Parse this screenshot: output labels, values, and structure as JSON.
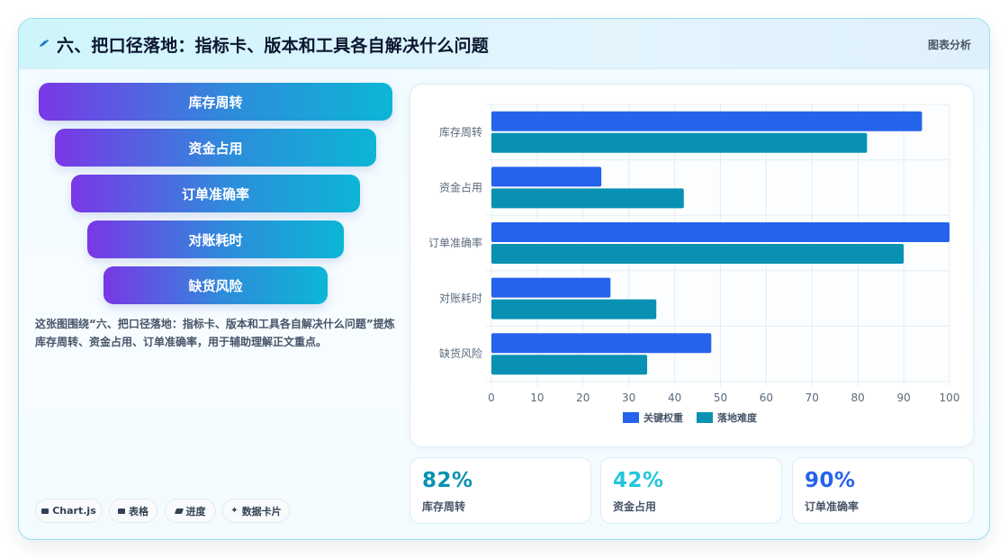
{
  "header": {
    "title": "六、把口径落地：指标卡、版本和工具各自解决什么问题",
    "subtitle": "图表分析"
  },
  "funnel": [
    "库存周转",
    "资金占用",
    "订单准确率",
    "对账耗时",
    "缺货风险"
  ],
  "description": "这张图围绕“六、把口径落地：指标卡、版本和工具各自解决什么问题”提炼库存周转、资金占用、订单准确率，用于辅助理解正文重点。",
  "tags": [
    {
      "label": "Chart.js",
      "icon": "chart-icon"
    },
    {
      "label": "表格",
      "icon": "table-icon"
    },
    {
      "label": "进度",
      "icon": "progress-icon"
    },
    {
      "label": "数据卡片",
      "icon": "sparkle-icon"
    }
  ],
  "kpis": [
    {
      "value": "82%",
      "label": "库存周转",
      "color": "#0891b2"
    },
    {
      "value": "42%",
      "label": "资金占用",
      "color": "#22c5dc"
    },
    {
      "value": "90%",
      "label": "订单准确率",
      "color": "#2563eb"
    }
  ],
  "chart_data": {
    "type": "bar",
    "orientation": "horizontal",
    "categories": [
      "库存周转",
      "资金占用",
      "订单准确率",
      "对账耗时",
      "缺货风险"
    ],
    "series": [
      {
        "name": "关键权重",
        "values": [
          94,
          24,
          100,
          26,
          48
        ],
        "color": "#2563eb"
      },
      {
        "name": "落地难度",
        "values": [
          82,
          42,
          90,
          36,
          34
        ],
        "color": "#0891b2"
      }
    ],
    "xlim": [
      0,
      100
    ],
    "xticks": [
      0,
      10,
      20,
      30,
      40,
      50,
      60,
      70,
      80,
      90,
      100
    ],
    "grid": true,
    "legend_position": "bottom"
  }
}
